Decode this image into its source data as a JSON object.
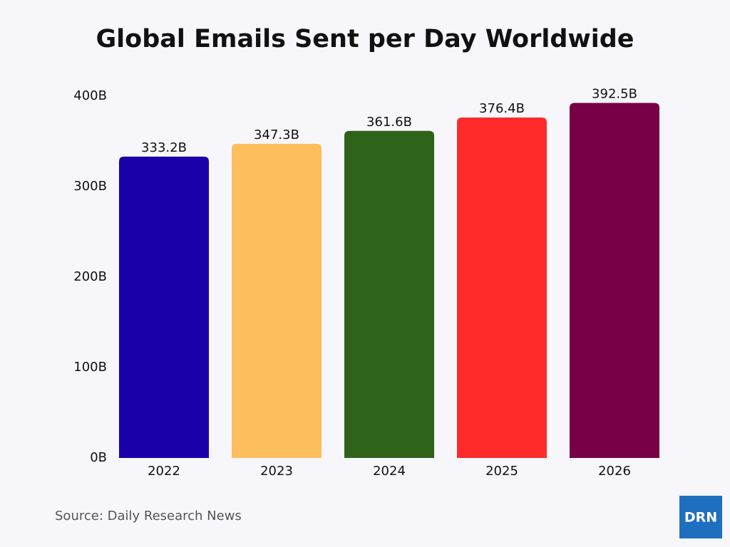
{
  "chart_data": {
    "type": "bar",
    "title": "Global Emails Sent per Day Worldwide",
    "categories": [
      "2022",
      "2023",
      "2024",
      "2025",
      "2026"
    ],
    "values": [
      333.2,
      347.3,
      361.6,
      376.4,
      392.5
    ],
    "value_labels": [
      "333.2B",
      "347.3B",
      "361.6B",
      "376.4B",
      "392.5B"
    ],
    "colors": [
      "#1a00a8",
      "#fdbe5e",
      "#2f631a",
      "#ff2b2b",
      "#770047"
    ],
    "ylim": [
      0,
      400
    ],
    "yticks": [
      {
        "value": 0,
        "label": "0B"
      },
      {
        "value": 100,
        "label": "100B"
      },
      {
        "value": 200,
        "label": "200B"
      },
      {
        "value": 300,
        "label": "300B"
      },
      {
        "value": 400,
        "label": "400B"
      }
    ],
    "grid": false,
    "source": "Source: Daily Research News",
    "logo": "DRN"
  }
}
